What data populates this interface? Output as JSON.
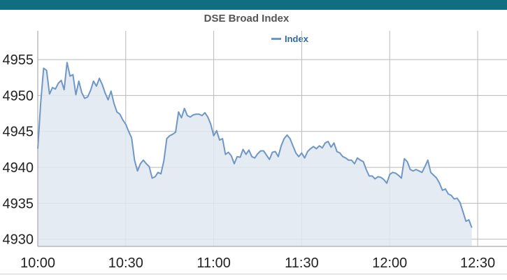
{
  "header": {
    "bar_color": "#0f6e82"
  },
  "chart_data": {
    "type": "area",
    "title": "DSE Broad Index",
    "legend": {
      "position": "top-center",
      "entries": [
        "Index"
      ]
    },
    "grid": true,
    "xlim_minutes": [
      600,
      760
    ],
    "ylim": [
      4929,
      4959
    ],
    "x_ticks": [
      {
        "label": "10:00",
        "minute": 600
      },
      {
        "label": "10:30",
        "minute": 630
      },
      {
        "label": "11:00",
        "minute": 660
      },
      {
        "label": "11:30",
        "minute": 690
      },
      {
        "label": "12:00",
        "minute": 720
      },
      {
        "label": "12:30",
        "minute": 750
      }
    ],
    "y_ticks": [
      4930,
      4935,
      4940,
      4945,
      4950,
      4955
    ],
    "series": [
      {
        "name": "Index",
        "color": "#6f97c6",
        "fill": "#e1e8f1",
        "points": [
          [
            "10:00",
            4942.6
          ],
          [
            "10:01",
            4949.0
          ],
          [
            "10:02",
            4953.8
          ],
          [
            "10:03",
            4953.5
          ],
          [
            "10:04",
            4950.2
          ],
          [
            "10:05",
            4951.1
          ],
          [
            "10:06",
            4950.9
          ],
          [
            "10:07",
            4951.7
          ],
          [
            "10:08",
            4952.1
          ],
          [
            "10:09",
            4950.8
          ],
          [
            "10:10",
            4954.6
          ],
          [
            "10:11",
            4952.7
          ],
          [
            "10:12",
            4952.9
          ],
          [
            "10:13",
            4950.1
          ],
          [
            "10:14",
            4952.0
          ],
          [
            "10:15",
            4950.4
          ],
          [
            "10:16",
            4949.6
          ],
          [
            "10:17",
            4949.8
          ],
          [
            "10:18",
            4950.7
          ],
          [
            "10:19",
            4952.0
          ],
          [
            "10:20",
            4951.3
          ],
          [
            "10:21",
            4952.4
          ],
          [
            "10:22",
            4951.5
          ],
          [
            "10:23",
            4950.3
          ],
          [
            "10:24",
            4949.4
          ],
          [
            "10:25",
            4950.6
          ],
          [
            "10:26",
            4948.9
          ],
          [
            "10:27",
            4947.7
          ],
          [
            "10:28",
            4947.4
          ],
          [
            "10:29",
            4946.6
          ],
          [
            "10:30",
            4946.0
          ],
          [
            "10:31",
            4945.0
          ],
          [
            "10:32",
            4944.1
          ],
          [
            "10:33",
            4941.0
          ],
          [
            "10:34",
            4939.5
          ],
          [
            "10:35",
            4940.5
          ],
          [
            "10:36",
            4941.0
          ],
          [
            "10:37",
            4940.5
          ],
          [
            "10:38",
            4940.1
          ],
          [
            "10:39",
            4938.5
          ],
          [
            "10:40",
            4938.7
          ],
          [
            "10:41",
            4939.3
          ],
          [
            "10:42",
            4939.1
          ],
          [
            "10:43",
            4940.9
          ],
          [
            "10:44",
            4944.0
          ],
          [
            "10:45",
            4944.4
          ],
          [
            "10:46",
            4944.6
          ],
          [
            "10:47",
            4944.9
          ],
          [
            "10:48",
            4947.7
          ],
          [
            "10:49",
            4946.9
          ],
          [
            "10:50",
            4948.2
          ],
          [
            "10:51",
            4947.2
          ],
          [
            "10:52",
            4947.0
          ],
          [
            "10:53",
            4947.3
          ],
          [
            "10:54",
            4947.4
          ],
          [
            "10:55",
            4947.4
          ],
          [
            "10:56",
            4947.2
          ],
          [
            "10:57",
            4947.6
          ],
          [
            "10:58",
            4947.0
          ],
          [
            "10:59",
            4946.0
          ],
          [
            "11:00",
            4944.4
          ],
          [
            "11:01",
            4945.1
          ],
          [
            "11:02",
            4943.8
          ],
          [
            "11:03",
            4944.0
          ],
          [
            "11:04",
            4941.8
          ],
          [
            "11:05",
            4942.1
          ],
          [
            "11:06",
            4941.6
          ],
          [
            "11:07",
            4940.5
          ],
          [
            "11:08",
            4941.5
          ],
          [
            "11:09",
            4941.4
          ],
          [
            "11:10",
            4942.5
          ],
          [
            "11:11",
            4941.8
          ],
          [
            "11:12",
            4942.4
          ],
          [
            "11:13",
            4941.5
          ],
          [
            "11:14",
            4941.3
          ],
          [
            "11:15",
            4941.9
          ],
          [
            "11:16",
            4942.3
          ],
          [
            "11:17",
            4942.3
          ],
          [
            "11:18",
            4941.7
          ],
          [
            "11:19",
            4941.1
          ],
          [
            "11:20",
            4942.1
          ],
          [
            "11:21",
            4942.2
          ],
          [
            "11:22",
            4941.5
          ],
          [
            "11:23",
            4943.0
          ],
          [
            "11:24",
            4944.0
          ],
          [
            "11:25",
            4944.5
          ],
          [
            "11:26",
            4944.0
          ],
          [
            "11:27",
            4943.0
          ],
          [
            "11:28",
            4942.0
          ],
          [
            "11:29",
            4941.5
          ],
          [
            "11:30",
            4942.0
          ],
          [
            "11:31",
            4941.3
          ],
          [
            "11:32",
            4942.2
          ],
          [
            "11:33",
            4942.6
          ],
          [
            "11:34",
            4942.9
          ],
          [
            "11:35",
            4942.6
          ],
          [
            "11:36",
            4943.0
          ],
          [
            "11:37",
            4942.7
          ],
          [
            "11:38",
            4943.4
          ],
          [
            "11:39",
            4943.6
          ],
          [
            "11:40",
            4942.8
          ],
          [
            "11:41",
            4943.4
          ],
          [
            "11:42",
            4942.2
          ],
          [
            "11:43",
            4942.0
          ],
          [
            "11:44",
            4941.5
          ],
          [
            "11:45",
            4941.3
          ],
          [
            "11:46",
            4941.0
          ],
          [
            "11:47",
            4941.0
          ],
          [
            "11:48",
            4940.5
          ],
          [
            "11:49",
            4941.3
          ],
          [
            "11:50",
            4941.0
          ],
          [
            "11:51",
            4940.8
          ],
          [
            "11:52",
            4939.7
          ],
          [
            "11:53",
            4938.8
          ],
          [
            "11:54",
            4938.8
          ],
          [
            "11:55",
            4938.4
          ],
          [
            "11:56",
            4938.7
          ],
          [
            "11:57",
            4938.6
          ],
          [
            "11:58",
            4938.3
          ],
          [
            "11:59",
            4937.8
          ],
          [
            "12:00",
            4939.0
          ],
          [
            "12:01",
            4939.3
          ],
          [
            "12:02",
            4939.2
          ],
          [
            "12:03",
            4938.9
          ],
          [
            "12:04",
            4938.5
          ],
          [
            "12:05",
            4941.2
          ],
          [
            "12:06",
            4940.8
          ],
          [
            "12:07",
            4939.7
          ],
          [
            "12:08",
            4939.5
          ],
          [
            "12:09",
            4939.7
          ],
          [
            "12:10",
            4939.5
          ],
          [
            "12:11",
            4939.3
          ],
          [
            "12:12",
            4940.1
          ],
          [
            "12:13",
            4941.0
          ],
          [
            "12:14",
            4939.3
          ],
          [
            "12:15",
            4938.9
          ],
          [
            "12:16",
            4938.5
          ],
          [
            "12:17",
            4937.8
          ],
          [
            "12:18",
            4936.8
          ],
          [
            "12:19",
            4937.0
          ],
          [
            "12:20",
            4936.3
          ],
          [
            "12:21",
            4936.1
          ],
          [
            "12:22",
            4935.6
          ],
          [
            "12:23",
            4935.7
          ],
          [
            "12:24",
            4935.1
          ],
          [
            "12:25",
            4933.8
          ],
          [
            "12:26",
            4932.5
          ],
          [
            "12:27",
            4932.7
          ],
          [
            "12:28",
            4931.6
          ]
        ]
      }
    ]
  }
}
